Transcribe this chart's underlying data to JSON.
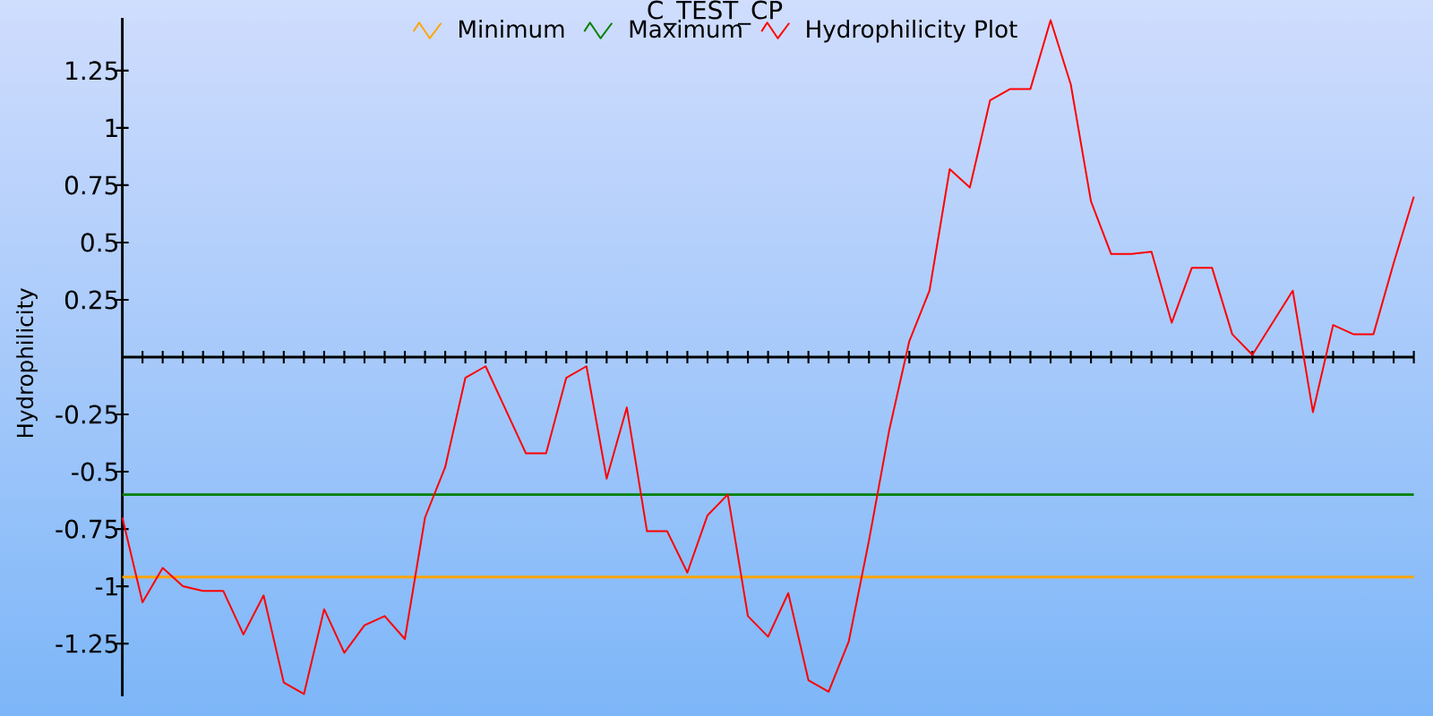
{
  "chart_data": {
    "type": "line",
    "title": "C_TEST_CP",
    "ylabel": "Hydrophilicity",
    "categories": [
      null,
      null,
      null,
      null,
      null,
      null,
      null,
      null,
      null,
      null,
      null,
      null,
      null,
      null,
      null,
      null,
      null,
      null,
      null,
      null,
      null,
      null,
      null,
      null,
      null,
      null,
      null,
      null,
      null,
      null,
      null,
      null,
      null,
      null,
      null,
      null,
      null,
      null,
      null,
      null,
      null,
      null,
      null,
      null,
      null,
      null,
      null,
      null,
      null,
      null,
      null,
      null,
      null,
      null,
      null,
      null,
      null,
      null,
      null,
      null,
      null,
      null,
      null,
      null,
      null
    ],
    "series": [
      {
        "name": "Hydrophilicity Plot",
        "color": "#ff0000",
        "values": [
          -0.7,
          -1.07,
          -0.92,
          -1,
          -1.02,
          -1.02,
          -1.21,
          -1.04,
          -1.42,
          -1.47,
          -1.1,
          -1.29,
          -1.17,
          -1.13,
          -1.23,
          -0.7,
          -0.48,
          -0.09,
          -0.04,
          -0.23,
          -0.42,
          -0.42,
          -0.09,
          -0.04,
          -0.53,
          -0.22,
          -0.76,
          -0.76,
          -0.94,
          -0.69,
          -0.6,
          -1.13,
          -1.22,
          -1.03,
          -1.41,
          -1.46,
          -1.24,
          -0.8,
          -0.32,
          0.07,
          0.29,
          0.82,
          0.74,
          1.12,
          1.17,
          1.17,
          1.47,
          1.19,
          0.68,
          0.45,
          0.45,
          0.46,
          0.15,
          0.39,
          0.39,
          0.1,
          0.01,
          0.15,
          0.29,
          -0.24,
          0.14,
          0.1,
          0.1,
          0.41,
          0.7
        ]
      }
    ],
    "ylim": [
      -1.48,
      1.48
    ],
    "yticks": [
      -1.25,
      -1,
      -0.75,
      -0.5,
      -0.25,
      0.25,
      0.5,
      0.75,
      1,
      1.25
    ],
    "ref_lines": [
      {
        "axis": "y",
        "value": -0.96,
        "label": "Minimum",
        "color": "#ffa500"
      },
      {
        "axis": "y",
        "value": -0.6,
        "label": "Maximum",
        "color": "#008000"
      }
    ],
    "legend": "top",
    "marker": "none"
  }
}
